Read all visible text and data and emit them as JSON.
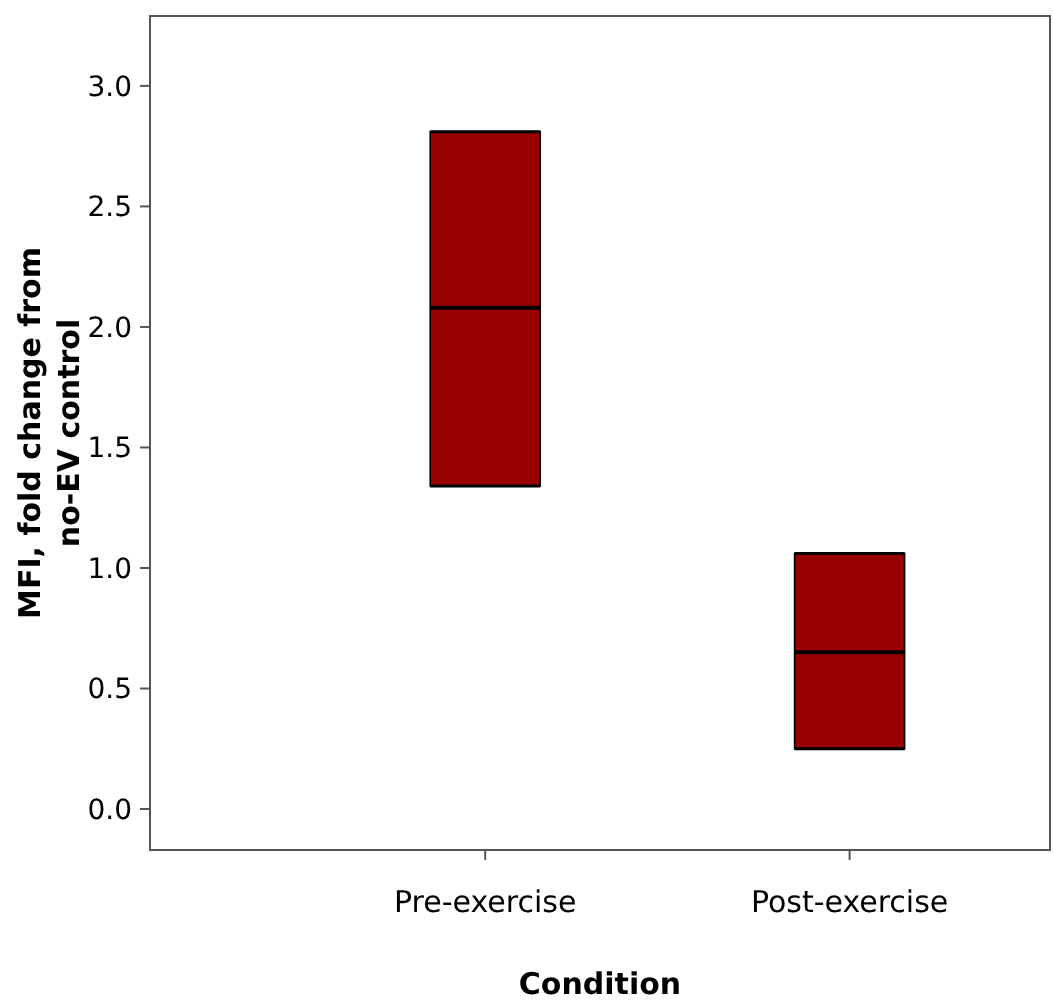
{
  "chart_data": {
    "type": "box",
    "xlabel": "Condition",
    "ylabel": "MFI, fold change from no-EV control",
    "categories": [
      "Pre-exercise",
      "Post-exercise"
    ],
    "color": "#990000",
    "ylim": [
      -0.17,
      3.29
    ],
    "yticks": [
      {
        "value": 0,
        "label": "0.0"
      },
      {
        "value": 0.5,
        "label": "0.5"
      },
      {
        "value": 1,
        "label": "1.0"
      },
      {
        "value": 1.5,
        "label": "1.5"
      },
      {
        "value": 2,
        "label": "2.0"
      },
      {
        "value": 2.5,
        "label": "2.5"
      },
      {
        "value": 3,
        "label": "3.0"
      }
    ],
    "boxes": [
      {
        "low": 1.34,
        "q1": 1.34,
        "median": 2.08,
        "q3": 2.81,
        "high": 2.81
      },
      {
        "low": 0.25,
        "q1": 0.25,
        "median": 0.65,
        "q3": 1.06,
        "high": 1.06
      }
    ]
  }
}
